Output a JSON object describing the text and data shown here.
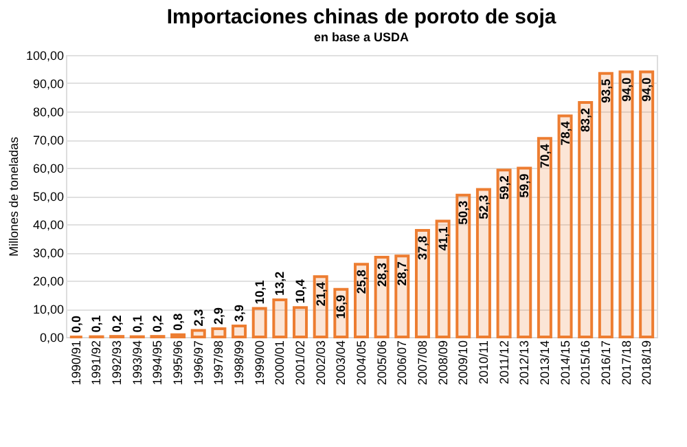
{
  "chart_data": {
    "type": "bar",
    "title": "Importaciones chinas de poroto de soja",
    "subtitle": "en base a USDA",
    "ylabel": "Millones de toneladas",
    "categories": [
      "1990/91",
      "1991/92",
      "1992/93",
      "1993/94",
      "1994/95",
      "1995/96",
      "1996/97",
      "1997/98",
      "1998/99",
      "1999/00",
      "2000/01",
      "2001/02",
      "2002/03",
      "2003/04",
      "2004/05",
      "2005/06",
      "2006/07",
      "2007/08",
      "2008/09",
      "2009/10",
      "2010/11",
      "2011/12",
      "2012/13",
      "2013/14",
      "2014/15",
      "2015/16",
      "2016/17",
      "2017/18",
      "2018/19"
    ],
    "values": [
      0.0,
      0.1,
      0.2,
      0.1,
      0.2,
      0.8,
      2.3,
      2.9,
      3.9,
      10.1,
      13.2,
      10.4,
      21.4,
      16.9,
      25.8,
      28.3,
      28.7,
      37.8,
      41.1,
      50.3,
      52.3,
      59.2,
      59.9,
      70.4,
      78.4,
      83.2,
      93.5,
      94.0,
      94.0
    ],
    "value_labels": [
      "0,0",
      "0,1",
      "0,2",
      "0,1",
      "0,2",
      "0,8",
      "2,3",
      "2,9",
      "3,9",
      "10,1",
      "13,2",
      "10,4",
      "21,4",
      "16,9",
      "25,8",
      "28,3",
      "28,7",
      "37,8",
      "41,1",
      "50,3",
      "52,3",
      "59,2",
      "59,9",
      "70,4",
      "78,4",
      "83,2",
      "93,5",
      "94,0",
      "94,0"
    ],
    "color": "#ed7d31",
    "ylim": [
      0,
      100
    ],
    "yticks": [
      {
        "value": 0,
        "label": "0,00"
      },
      {
        "value": 10,
        "label": "10,00"
      },
      {
        "value": 20,
        "label": "20,00"
      },
      {
        "value": 30,
        "label": "30,00"
      },
      {
        "value": 40,
        "label": "40,00"
      },
      {
        "value": 50,
        "label": "50,00"
      },
      {
        "value": 60,
        "label": "60,00"
      },
      {
        "value": 70,
        "label": "70,00"
      },
      {
        "value": 80,
        "label": "80,00"
      },
      {
        "value": 90,
        "label": "90,00"
      },
      {
        "value": 100,
        "label": "100,00"
      }
    ],
    "grid": "y"
  }
}
